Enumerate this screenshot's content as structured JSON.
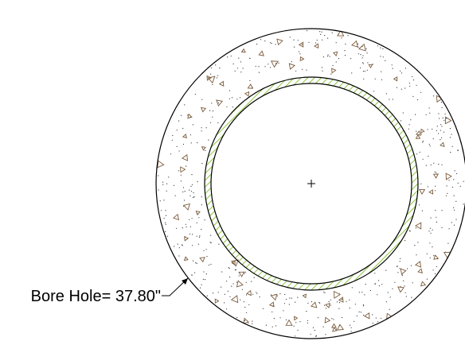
{
  "callout": {
    "label": "Bore Hole= 37.80\""
  },
  "colors": {
    "line": "#000000",
    "hatch": "#8cc63f",
    "aggregate": "#7a5a3a",
    "background": "#ffffff"
  },
  "drawing": {
    "bore_hole_diameter": "37.80\"",
    "center_mark": "+"
  }
}
